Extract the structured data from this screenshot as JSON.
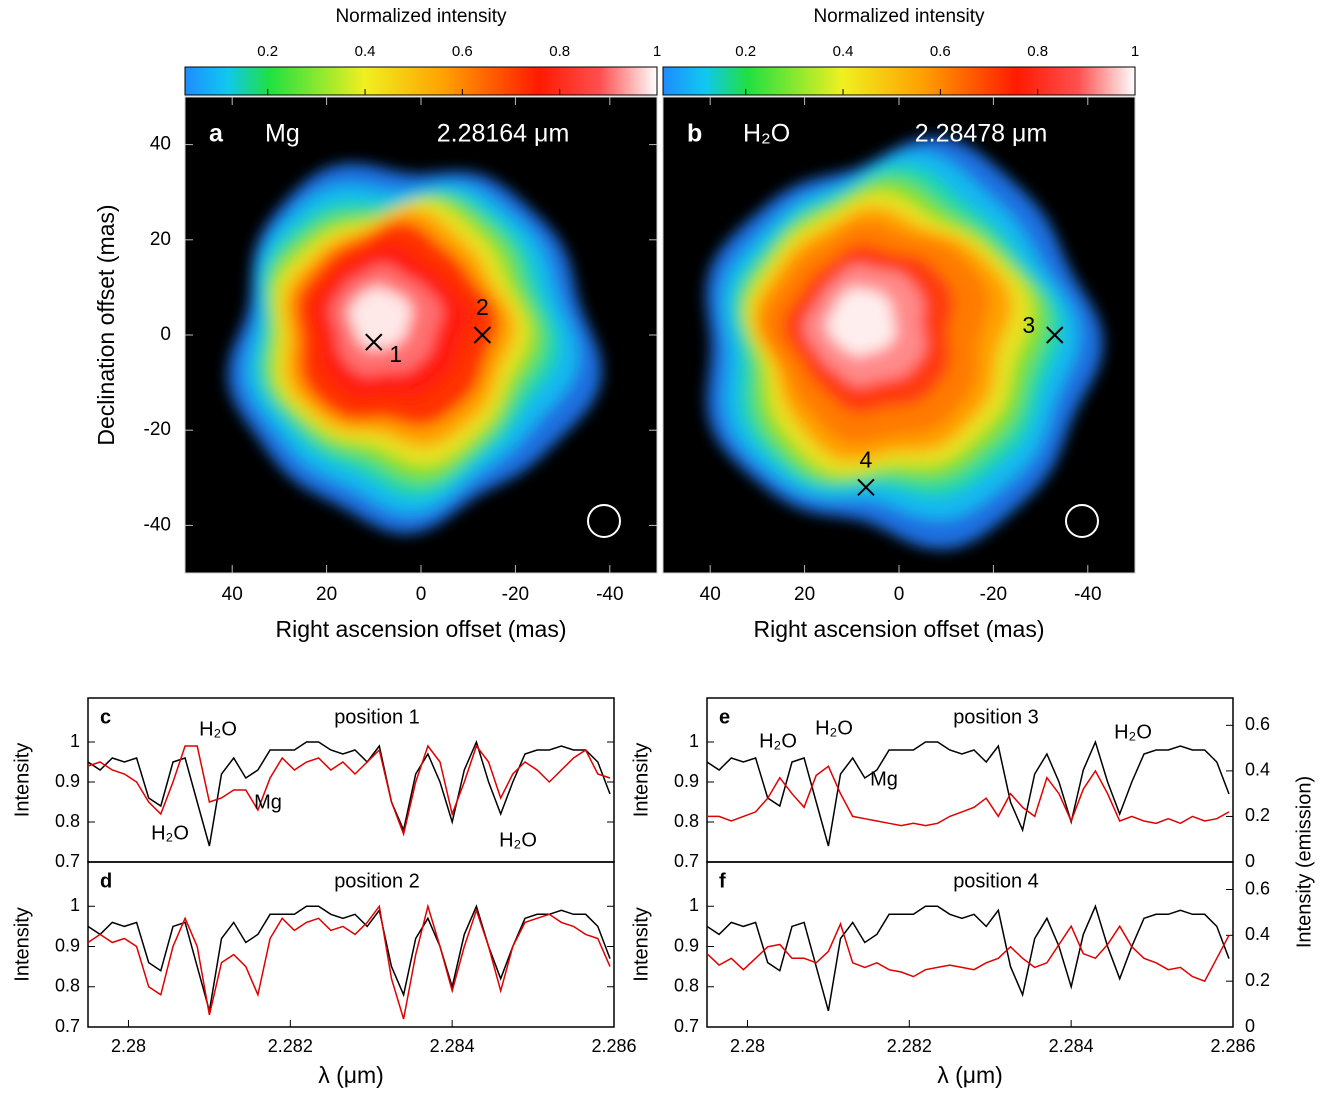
{
  "chart_data": [
    {
      "type": "image",
      "panel": "a",
      "species": "Mg",
      "wavelength": "2.28164 μm",
      "colorbar_label": "Normalized intensity",
      "colorbar_lim": [
        0.03,
        1
      ],
      "colorbar_ticks": [
        0.2,
        0.4,
        0.6,
        0.8,
        1
      ],
      "xlim": [
        50,
        -50
      ],
      "ylim": [
        -50,
        50
      ],
      "xticks": [
        40,
        20,
        0,
        -20,
        -40
      ],
      "yticks": [
        40,
        20,
        0,
        -20,
        -40
      ],
      "xlabel": "Right ascension offset (mas)",
      "ylabel": "Declination offset (mas)",
      "markers": [
        {
          "label": "1",
          "x": 10,
          "y": -1.5
        },
        {
          "label": "2",
          "x": -13,
          "y": 0
        }
      ]
    },
    {
      "type": "image",
      "panel": "b",
      "species": "H₂O",
      "wavelength": "2.28478 μm",
      "colorbar_label": "Normalized intensity",
      "colorbar_lim": [
        0.03,
        1
      ],
      "colorbar_ticks": [
        0.2,
        0.4,
        0.6,
        0.8,
        1
      ],
      "xlim": [
        50,
        -50
      ],
      "ylim": [
        -50,
        50
      ],
      "xticks": [
        40,
        20,
        0,
        -20,
        -40
      ],
      "xlabel": "Right ascension offset (mas)",
      "markers": [
        {
          "label": "3",
          "x": -33,
          "y": 0
        },
        {
          "label": "4",
          "x": 7,
          "y": -32
        }
      ]
    },
    {
      "type": "line",
      "panel": "c",
      "title": "position 1",
      "ylabel": "Intensity",
      "xlim": [
        2.2795,
        2.286
      ],
      "ylim": [
        0.7,
        1.11
      ],
      "yticks": [
        0.7,
        0.8,
        0.9,
        1
      ],
      "annotations": [
        "H₂O",
        "H₂O",
        "Mg",
        "H₂O"
      ],
      "x": [
        2.2795,
        2.27965,
        2.2798,
        2.27995,
        2.2801,
        2.28025,
        2.2804,
        2.28055,
        2.2807,
        2.28085,
        2.281,
        2.28115,
        2.2813,
        2.28145,
        2.2816,
        2.28175,
        2.2819,
        2.28205,
        2.2822,
        2.28235,
        2.2825,
        2.28265,
        2.2828,
        2.28295,
        2.2831,
        2.28325,
        2.2834,
        2.28355,
        2.2837,
        2.28385,
        2.284,
        2.28415,
        2.2843,
        2.28445,
        2.2846,
        2.28475,
        2.2849,
        2.28505,
        2.2852,
        2.28535,
        2.2855,
        2.28565,
        2.2858,
        2.28595
      ],
      "series": [
        {
          "color": "#000000",
          "values": [
            0.95,
            0.93,
            0.96,
            0.95,
            0.96,
            0.86,
            0.84,
            0.95,
            0.96,
            0.85,
            0.74,
            0.92,
            0.96,
            0.91,
            0.93,
            0.98,
            0.98,
            0.98,
            1.0,
            1.0,
            0.98,
            0.97,
            0.98,
            0.95,
            0.99,
            0.85,
            0.78,
            0.92,
            0.97,
            0.9,
            0.8,
            0.93,
            1.0,
            0.9,
            0.82,
            0.9,
            0.97,
            0.98,
            0.98,
            0.99,
            0.98,
            0.98,
            0.95,
            0.87
          ]
        },
        {
          "color": "#e00000",
          "values": [
            0.94,
            0.95,
            0.93,
            0.92,
            0.9,
            0.85,
            0.82,
            0.9,
            0.99,
            0.99,
            0.85,
            0.86,
            0.88,
            0.88,
            0.83,
            0.91,
            0.96,
            0.93,
            0.95,
            0.96,
            0.93,
            0.95,
            0.92,
            0.95,
            0.98,
            0.85,
            0.77,
            0.9,
            0.99,
            0.95,
            0.82,
            0.9,
            0.99,
            0.95,
            0.86,
            0.92,
            0.95,
            0.93,
            0.9,
            0.93,
            0.96,
            0.98,
            0.92,
            0.91
          ]
        }
      ]
    },
    {
      "type": "line",
      "panel": "d",
      "title": "position 2",
      "ylabel": "Intensity",
      "xlabel": "λ (μm)",
      "xlim": [
        2.2795,
        2.286
      ],
      "ylim": [
        0.7,
        1.11
      ],
      "yticks": [
        0.7,
        0.8,
        0.9,
        1
      ],
      "xticks": [
        2.28,
        2.282,
        2.284,
        2.286
      ],
      "x": [
        2.2795,
        2.27965,
        2.2798,
        2.27995,
        2.2801,
        2.28025,
        2.2804,
        2.28055,
        2.2807,
        2.28085,
        2.281,
        2.28115,
        2.2813,
        2.28145,
        2.2816,
        2.28175,
        2.2819,
        2.28205,
        2.2822,
        2.28235,
        2.2825,
        2.28265,
        2.2828,
        2.28295,
        2.2831,
        2.28325,
        2.2834,
        2.28355,
        2.2837,
        2.28385,
        2.284,
        2.28415,
        2.2843,
        2.28445,
        2.2846,
        2.28475,
        2.2849,
        2.28505,
        2.2852,
        2.28535,
        2.2855,
        2.28565,
        2.2858,
        2.28595
      ],
      "series": [
        {
          "color": "#000000",
          "values": [
            0.95,
            0.93,
            0.96,
            0.95,
            0.96,
            0.86,
            0.84,
            0.95,
            0.96,
            0.85,
            0.74,
            0.92,
            0.96,
            0.91,
            0.93,
            0.98,
            0.98,
            0.98,
            1.0,
            1.0,
            0.98,
            0.97,
            0.98,
            0.95,
            0.99,
            0.85,
            0.78,
            0.92,
            0.97,
            0.9,
            0.8,
            0.93,
            1.0,
            0.9,
            0.82,
            0.9,
            0.97,
            0.98,
            0.98,
            0.99,
            0.98,
            0.98,
            0.95,
            0.87
          ]
        },
        {
          "color": "#e00000",
          "values": [
            0.91,
            0.93,
            0.91,
            0.92,
            0.9,
            0.8,
            0.78,
            0.9,
            0.97,
            0.9,
            0.73,
            0.86,
            0.88,
            0.85,
            0.78,
            0.92,
            0.97,
            0.94,
            0.96,
            0.97,
            0.94,
            0.95,
            0.93,
            0.96,
            1.0,
            0.82,
            0.72,
            0.88,
            1.0,
            0.9,
            0.79,
            0.9,
            0.99,
            0.9,
            0.79,
            0.9,
            0.96,
            0.97,
            0.98,
            0.96,
            0.95,
            0.93,
            0.92,
            0.85
          ]
        }
      ]
    },
    {
      "type": "line",
      "panel": "e",
      "title": "position 3",
      "ylabel": "Intensity",
      "y2label": "Intensity (emission)",
      "xlim": [
        2.2795,
        2.286
      ],
      "ylim": [
        0.7,
        1.11
      ],
      "yticks": [
        0.7,
        0.8,
        0.9,
        1
      ],
      "y2lim": [
        0,
        0.72
      ],
      "y2ticks": [
        0,
        0.2,
        0.4,
        0.6
      ],
      "annotations": [
        "H₂O",
        "H₂O",
        "Mg",
        "H₂O"
      ],
      "x": [
        2.2795,
        2.27965,
        2.2798,
        2.27995,
        2.2801,
        2.28025,
        2.2804,
        2.28055,
        2.2807,
        2.28085,
        2.281,
        2.28115,
        2.2813,
        2.28145,
        2.2816,
        2.28175,
        2.2819,
        2.28205,
        2.2822,
        2.28235,
        2.2825,
        2.28265,
        2.2828,
        2.28295,
        2.2831,
        2.28325,
        2.2834,
        2.28355,
        2.2837,
        2.28385,
        2.284,
        2.28415,
        2.2843,
        2.28445,
        2.2846,
        2.28475,
        2.2849,
        2.28505,
        2.2852,
        2.28535,
        2.2855,
        2.28565,
        2.2858,
        2.28595
      ],
      "series": [
        {
          "color": "#000000",
          "values": [
            0.95,
            0.93,
            0.96,
            0.95,
            0.96,
            0.86,
            0.84,
            0.95,
            0.96,
            0.85,
            0.74,
            0.92,
            0.96,
            0.91,
            0.93,
            0.98,
            0.98,
            0.98,
            1.0,
            1.0,
            0.98,
            0.97,
            0.98,
            0.95,
            0.99,
            0.85,
            0.78,
            0.92,
            0.97,
            0.9,
            0.8,
            0.93,
            1.0,
            0.9,
            0.82,
            0.9,
            0.97,
            0.98,
            0.98,
            0.99,
            0.98,
            0.98,
            0.95,
            0.87
          ]
        },
        {
          "color": "#e00000",
          "axis": "y2",
          "values": [
            0.2,
            0.2,
            0.18,
            0.2,
            0.22,
            0.28,
            0.37,
            0.3,
            0.24,
            0.38,
            0.42,
            0.3,
            0.2,
            0.19,
            0.18,
            0.17,
            0.16,
            0.17,
            0.16,
            0.17,
            0.2,
            0.22,
            0.24,
            0.28,
            0.2,
            0.3,
            0.24,
            0.2,
            0.37,
            0.3,
            0.18,
            0.32,
            0.4,
            0.3,
            0.18,
            0.2,
            0.18,
            0.17,
            0.19,
            0.17,
            0.2,
            0.18,
            0.19,
            0.22
          ]
        }
      ]
    },
    {
      "type": "line",
      "panel": "f",
      "title": "position 4",
      "ylabel": "Intensity",
      "xlabel": "λ (μm)",
      "xlim": [
        2.2795,
        2.286
      ],
      "ylim": [
        0.7,
        1.11
      ],
      "yticks": [
        0.7,
        0.8,
        0.9,
        1
      ],
      "xticks": [
        2.28,
        2.282,
        2.284,
        2.286
      ],
      "y2lim": [
        0,
        0.72
      ],
      "y2ticks": [
        0,
        0.2,
        0.4,
        0.6
      ],
      "x": [
        2.2795,
        2.27965,
        2.2798,
        2.27995,
        2.2801,
        2.28025,
        2.2804,
        2.28055,
        2.2807,
        2.28085,
        2.281,
        2.28115,
        2.2813,
        2.28145,
        2.2816,
        2.28175,
        2.2819,
        2.28205,
        2.2822,
        2.28235,
        2.2825,
        2.28265,
        2.2828,
        2.28295,
        2.2831,
        2.28325,
        2.2834,
        2.28355,
        2.2837,
        2.28385,
        2.284,
        2.28415,
        2.2843,
        2.28445,
        2.2846,
        2.28475,
        2.2849,
        2.28505,
        2.2852,
        2.28535,
        2.2855,
        2.28565,
        2.2858,
        2.28595
      ],
      "series": [
        {
          "color": "#000000",
          "values": [
            0.95,
            0.93,
            0.96,
            0.95,
            0.96,
            0.86,
            0.84,
            0.95,
            0.96,
            0.85,
            0.74,
            0.92,
            0.96,
            0.91,
            0.93,
            0.98,
            0.98,
            0.98,
            1.0,
            1.0,
            0.98,
            0.97,
            0.98,
            0.95,
            0.99,
            0.85,
            0.78,
            0.92,
            0.97,
            0.9,
            0.8,
            0.93,
            1.0,
            0.9,
            0.82,
            0.9,
            0.97,
            0.98,
            0.98,
            0.99,
            0.98,
            0.98,
            0.95,
            0.87
          ]
        },
        {
          "color": "#e00000",
          "axis": "y2",
          "values": [
            0.32,
            0.27,
            0.3,
            0.25,
            0.3,
            0.35,
            0.36,
            0.3,
            0.3,
            0.28,
            0.33,
            0.45,
            0.28,
            0.26,
            0.28,
            0.25,
            0.24,
            0.22,
            0.25,
            0.26,
            0.27,
            0.26,
            0.25,
            0.28,
            0.3,
            0.35,
            0.3,
            0.26,
            0.28,
            0.36,
            0.44,
            0.32,
            0.3,
            0.36,
            0.44,
            0.35,
            0.3,
            0.28,
            0.25,
            0.26,
            0.22,
            0.2,
            0.3,
            0.4
          ]
        }
      ]
    }
  ]
}
